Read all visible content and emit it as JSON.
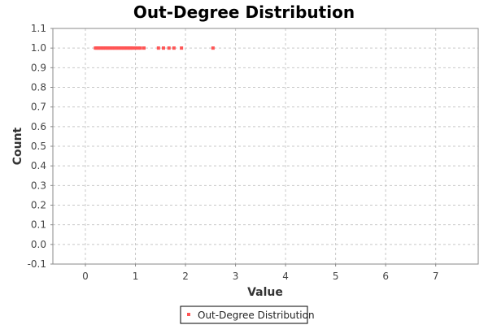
{
  "chart_data": {
    "type": "scatter",
    "title": "Out-Degree Distribution",
    "xlabel": "Value",
    "ylabel": "Count",
    "xlim": [
      -0.65,
      7.85
    ],
    "ylim": [
      -0.1,
      1.1
    ],
    "x_ticks": [
      0,
      1,
      2,
      3,
      4,
      5,
      6,
      7
    ],
    "y_ticks": [
      -0.1,
      0.0,
      0.1,
      0.2,
      0.3,
      0.4,
      0.5,
      0.6,
      0.7,
      0.8,
      0.9,
      1.0,
      1.1
    ],
    "grid": true,
    "legend": {
      "position": "bottom-center"
    },
    "series": [
      {
        "name": "Out-Degree Distribution",
        "color": "#ff5555",
        "points": [
          {
            "x": 0.2,
            "y": 1.0
          },
          {
            "x": 0.23,
            "y": 1.0
          },
          {
            "x": 0.26,
            "y": 1.0
          },
          {
            "x": 0.29,
            "y": 1.0
          },
          {
            "x": 0.32,
            "y": 1.0
          },
          {
            "x": 0.35,
            "y": 1.0
          },
          {
            "x": 0.38,
            "y": 1.0
          },
          {
            "x": 0.41,
            "y": 1.0
          },
          {
            "x": 0.44,
            "y": 1.0
          },
          {
            "x": 0.47,
            "y": 1.0
          },
          {
            "x": 0.5,
            "y": 1.0
          },
          {
            "x": 0.53,
            "y": 1.0
          },
          {
            "x": 0.56,
            "y": 1.0
          },
          {
            "x": 0.59,
            "y": 1.0
          },
          {
            "x": 0.62,
            "y": 1.0
          },
          {
            "x": 0.65,
            "y": 1.0
          },
          {
            "x": 0.68,
            "y": 1.0
          },
          {
            "x": 0.71,
            "y": 1.0
          },
          {
            "x": 0.74,
            "y": 1.0
          },
          {
            "x": 0.77,
            "y": 1.0
          },
          {
            "x": 0.8,
            "y": 1.0
          },
          {
            "x": 0.83,
            "y": 1.0
          },
          {
            "x": 0.86,
            "y": 1.0
          },
          {
            "x": 0.89,
            "y": 1.0
          },
          {
            "x": 0.92,
            "y": 1.0
          },
          {
            "x": 0.95,
            "y": 1.0
          },
          {
            "x": 1.0,
            "y": 1.0
          },
          {
            "x": 1.05,
            "y": 1.0
          },
          {
            "x": 1.1,
            "y": 1.0
          },
          {
            "x": 1.17,
            "y": 1.0
          },
          {
            "x": 1.46,
            "y": 1.0
          },
          {
            "x": 1.56,
            "y": 1.0
          },
          {
            "x": 1.67,
            "y": 1.0
          },
          {
            "x": 1.77,
            "y": 1.0
          },
          {
            "x": 1.92,
            "y": 1.0
          },
          {
            "x": 2.55,
            "y": 1.0
          }
        ]
      }
    ]
  }
}
